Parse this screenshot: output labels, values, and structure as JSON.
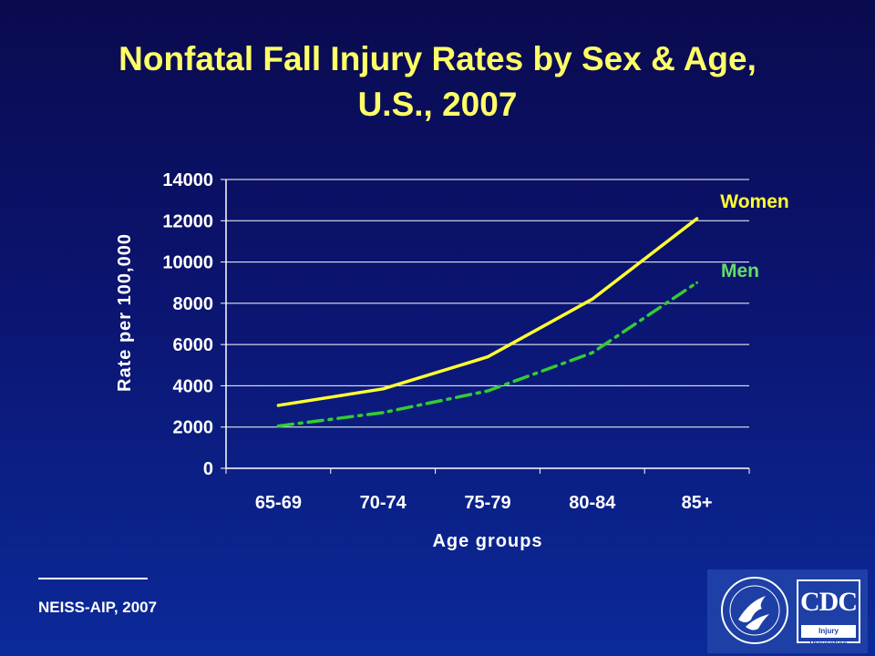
{
  "chart_data": {
    "type": "line",
    "title": "Nonfatal Fall Injury Rates by Sex & Age,",
    "subtitle": "U.S., 2007",
    "xlabel": "Age groups",
    "ylabel": "Rate per 100,000",
    "categories": [
      "65-69",
      "70-74",
      "75-79",
      "80-84",
      "85+"
    ],
    "ylim": [
      0,
      14000
    ],
    "yticks": [
      0,
      2000,
      4000,
      6000,
      8000,
      10000,
      12000,
      14000
    ],
    "grid": true,
    "series": [
      {
        "name": "Women",
        "values": [
          3050,
          3850,
          5400,
          8200,
          12100
        ],
        "color": "#ffff33",
        "style": "solid"
      },
      {
        "name": "Men",
        "values": [
          2050,
          2700,
          3750,
          5600,
          9000
        ],
        "color": "#33cc33",
        "style": "dashdot"
      }
    ]
  },
  "footer": {
    "source": "NEISS-AIP, 2007"
  },
  "logo": {
    "cdc_text": "CDC",
    "cdc_subtext": "Injury Prevention"
  },
  "colors": {
    "title": "#ffff66",
    "text": "#ffffff",
    "women_label": "#ffff33",
    "men_label": "#66dd66"
  }
}
